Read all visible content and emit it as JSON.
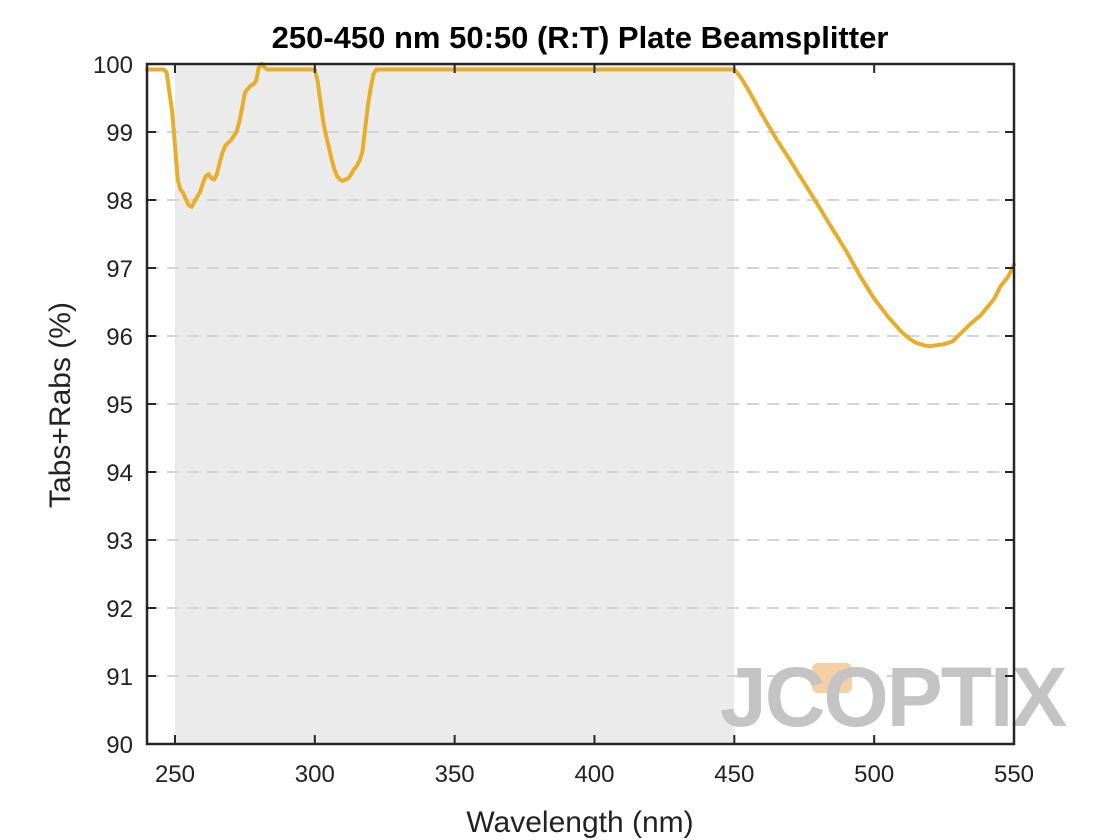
{
  "chart_data": {
    "type": "line",
    "title": "250-450 nm 50:50 (R:T) Plate Beamsplitter",
    "xlabel": "Wavelength (nm)",
    "ylabel": "Tabs+Rabs (%)",
    "xlim": [
      240,
      550
    ],
    "ylim": [
      90,
      100
    ],
    "xticks": [
      250,
      300,
      350,
      400,
      450,
      500,
      550
    ],
    "yticks": [
      90,
      91,
      92,
      93,
      94,
      95,
      96,
      97,
      98,
      99,
      100
    ],
    "grid": "horizontal-dashed",
    "highlight_band": {
      "from": 250,
      "to": 450,
      "color": "#ebebeb"
    },
    "series": [
      {
        "color": "#e6ae2c",
        "x": [
          240,
          246,
          247,
          249,
          250,
          251,
          252,
          253,
          254,
          255,
          256,
          257,
          258,
          259,
          260,
          261,
          262,
          263,
          264,
          265,
          266,
          267,
          268,
          270,
          272,
          273,
          274,
          275,
          277,
          278,
          279,
          280,
          281,
          282,
          283,
          284,
          285,
          286,
          288,
          290,
          295,
          298,
          300,
          301,
          302,
          303,
          304,
          305,
          306,
          307,
          308,
          309,
          310,
          311,
          312,
          313,
          314,
          315,
          316,
          317,
          318,
          319,
          320,
          321,
          322,
          323,
          325,
          330,
          350,
          400,
          440,
          448,
          450,
          452,
          455,
          460,
          465,
          470,
          475,
          480,
          485,
          490,
          495,
          500,
          505,
          510,
          513,
          515,
          518,
          520,
          525,
          528,
          530,
          533,
          535,
          538,
          540,
          543,
          545,
          548,
          550
        ],
        "y": [
          99.92,
          99.92,
          99.88,
          99.3,
          98.8,
          98.3,
          98.15,
          98.1,
          98.0,
          97.92,
          97.9,
          97.98,
          98.05,
          98.12,
          98.25,
          98.35,
          98.38,
          98.32,
          98.3,
          98.38,
          98.55,
          98.7,
          98.8,
          98.88,
          99.0,
          99.15,
          99.35,
          99.58,
          99.68,
          99.7,
          99.75,
          99.95,
          100.0,
          99.95,
          99.92,
          99.92,
          99.92,
          99.92,
          99.92,
          99.92,
          99.92,
          99.92,
          99.92,
          99.75,
          99.45,
          99.15,
          98.95,
          98.78,
          98.6,
          98.45,
          98.35,
          98.3,
          98.28,
          98.3,
          98.32,
          98.38,
          98.45,
          98.5,
          98.58,
          98.7,
          99.05,
          99.4,
          99.65,
          99.85,
          99.92,
          99.92,
          99.92,
          99.92,
          99.92,
          99.92,
          99.92,
          99.92,
          99.92,
          99.82,
          99.62,
          99.25,
          98.9,
          98.58,
          98.25,
          97.92,
          97.58,
          97.25,
          96.88,
          96.55,
          96.28,
          96.05,
          95.95,
          95.9,
          95.86,
          95.85,
          95.88,
          95.92,
          96.0,
          96.12,
          96.2,
          96.3,
          96.4,
          96.55,
          96.72,
          96.88,
          97.05
        ]
      }
    ]
  },
  "watermark": {
    "text": "JCOPTIX",
    "color": "#c4c4c4",
    "accent": "#f7cfa4"
  }
}
